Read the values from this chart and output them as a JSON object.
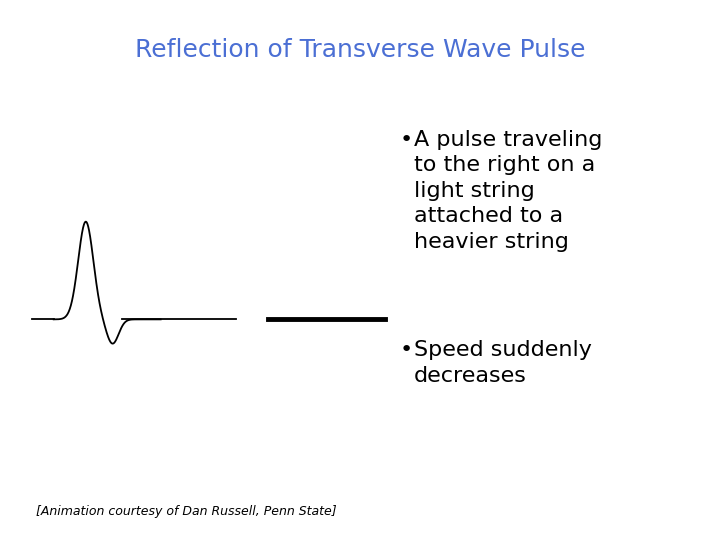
{
  "title": "Reflection of Transverse Wave Pulse",
  "title_color": "#4B6FD4",
  "title_fontsize": 18,
  "title_weight": "normal",
  "bg_color": "#ffffff",
  "bullet1_text": "A pulse traveling\nto the right on a\nlight string\nattached to a\nheavier string",
  "bullet2_text": "Speed suddenly\ndecreases",
  "bullet_fontsize": 16,
  "attribution": "[Animation courtesy of Dan Russell, Penn State]",
  "attribution_fontsize": 9,
  "wave_color": "#000000",
  "thin_lw": 1.3,
  "thick_lw": 3.5
}
